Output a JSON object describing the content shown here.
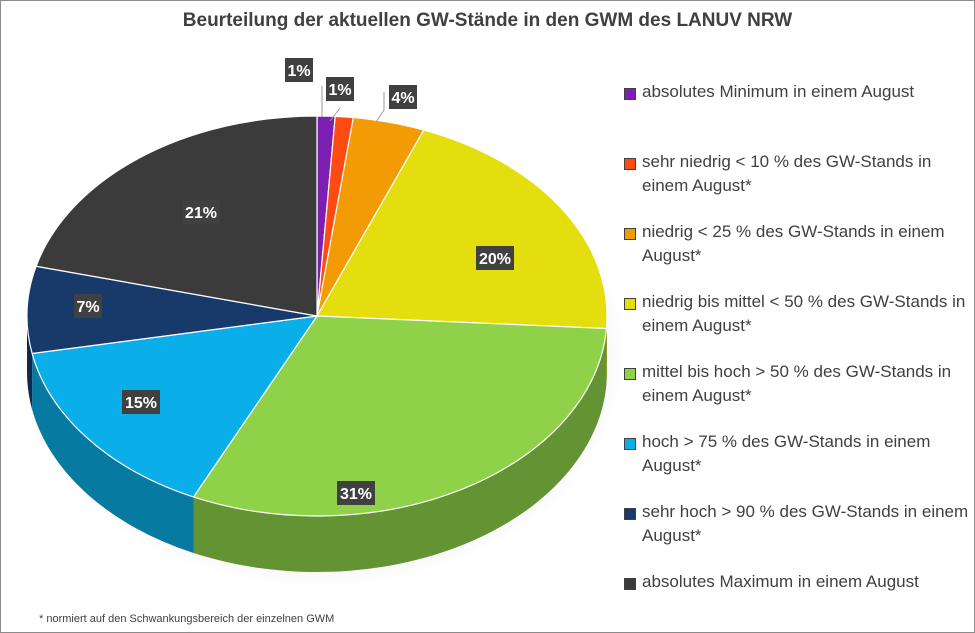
{
  "chart_data": {
    "type": "pie",
    "title": "Beurteilung der aktuellen GW-Stände in den GWM des LANUV NRW",
    "slices": [
      {
        "label": "absolutes Minimum  in einem August",
        "value": 1,
        "data_label": "1%",
        "color": "#7d1fb3"
      },
      {
        "label": "sehr niedrig  < 10 % des GW-Stands in einem August*",
        "value": 1,
        "data_label": "1%",
        "color": "#ff4a14"
      },
      {
        "label": "niedrig   < 25 % des GW-Stands in einem August*",
        "value": 4,
        "data_label": "4%",
        "color": "#f29b05"
      },
      {
        "label": "niedrig bis mittel  < 50 % des GW-Stands in einem August*",
        "value": 20,
        "data_label": "20%",
        "color": "#e4de0f"
      },
      {
        "label": "mittel bis hoch  > 50 % des GW-Stands in einem August*",
        "value": 31,
        "data_label": "31%",
        "color": "#8fd24a"
      },
      {
        "label": "hoch  > 75 % des GW-Stands in einem August*",
        "value": 15,
        "data_label": "15%",
        "color": "#0aaee8"
      },
      {
        "label": "sehr hoch  > 90 % des GW-Stands in einem August*",
        "value": 7,
        "data_label": "7%",
        "color": "#173a6b"
      },
      {
        "label": "absolutes Maximum  in einem August",
        "value": 21,
        "data_label": "21%",
        "color": "#3b3b3b"
      }
    ],
    "legend_position": "right",
    "footnote": "* normiert auf den Schwankungsbereich der einzelnen GWM"
  }
}
